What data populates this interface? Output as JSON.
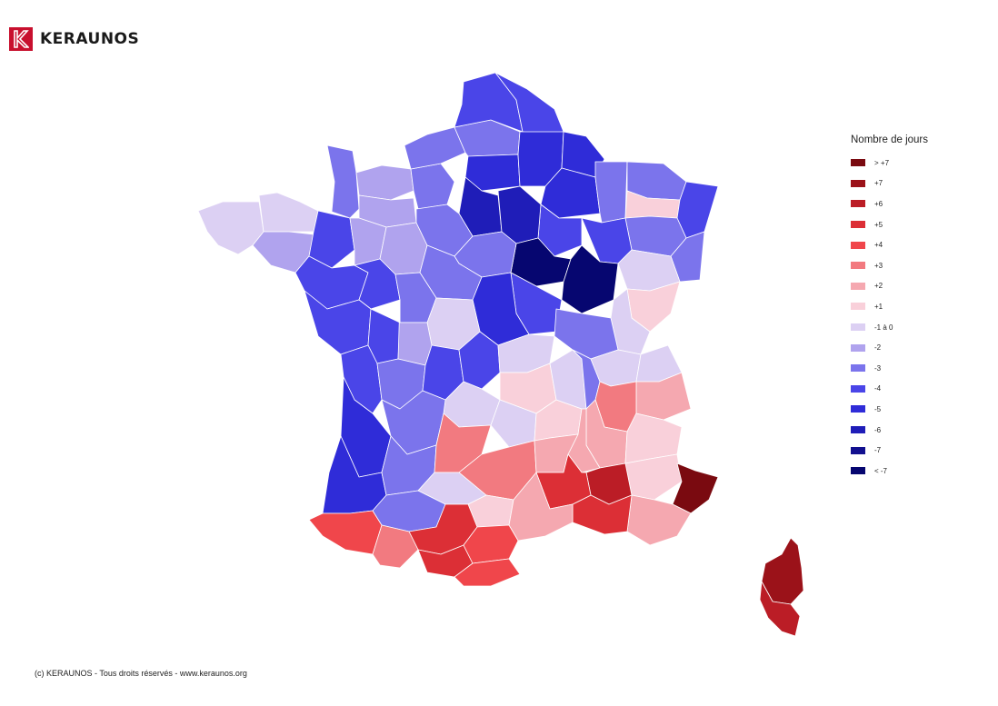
{
  "brand": {
    "name": "KERAUNOS",
    "color": "#c8102e"
  },
  "legend": {
    "title": "Nombre de jours",
    "items": [
      {
        "label": "> +7",
        "color": "#7a0a10"
      },
      {
        "label": "+7",
        "color": "#9b1219"
      },
      {
        "label": "+6",
        "color": "#bb1d26"
      },
      {
        "label": "+5",
        "color": "#dc2f36"
      },
      {
        "label": "+4",
        "color": "#f0464b"
      },
      {
        "label": "+3",
        "color": "#f27a80"
      },
      {
        "label": "+2",
        "color": "#f5a8b0"
      },
      {
        "label": "+1",
        "color": "#f9d0da"
      },
      {
        "label": "-1 à 0",
        "color": "#dcd0f3"
      },
      {
        "label": "-2",
        "color": "#b0a3ee"
      },
      {
        "label": "-3",
        "color": "#7b74ec"
      },
      {
        "label": "-4",
        "color": "#4a45e8"
      },
      {
        "label": "-5",
        "color": "#2f2cd8"
      },
      {
        "label": "-6",
        "color": "#1f1db8"
      },
      {
        "label": "-7",
        "color": "#12108f"
      },
      {
        "label": "< -7",
        "color": "#060670"
      }
    ]
  },
  "map": {
    "regions": [
      {
        "name": "finistere",
        "level": 8
      },
      {
        "name": "cotes-armor",
        "level": 8
      },
      {
        "name": "morbihan",
        "level": 9
      },
      {
        "name": "ille-vilaine",
        "level": 11
      },
      {
        "name": "manche",
        "level": 10
      },
      {
        "name": "calvados",
        "level": 9
      },
      {
        "name": "orne",
        "level": 9
      },
      {
        "name": "eure",
        "level": 10
      },
      {
        "name": "seine-maritime",
        "level": 10
      },
      {
        "name": "somme",
        "level": 10
      },
      {
        "name": "nord",
        "level": 11
      },
      {
        "name": "pas-de-calais",
        "level": 11
      },
      {
        "name": "aisne",
        "level": 12
      },
      {
        "name": "oise",
        "level": 12
      },
      {
        "name": "ardennes",
        "level": 12
      },
      {
        "name": "marne",
        "level": 12
      },
      {
        "name": "ile-de-france",
        "level": 13
      },
      {
        "name": "seine-et-marne",
        "level": 13
      },
      {
        "name": "meuse",
        "level": 10
      },
      {
        "name": "moselle",
        "level": 10
      },
      {
        "name": "bas-rhin",
        "level": 11
      },
      {
        "name": "haut-rhin",
        "level": 10
      },
      {
        "name": "meurthe-moselle",
        "level": 7
      },
      {
        "name": "vosges",
        "level": 10
      },
      {
        "name": "haute-marne",
        "level": 11
      },
      {
        "name": "aube",
        "level": 11
      },
      {
        "name": "yonne",
        "level": 15
      },
      {
        "name": "cote-dor",
        "level": 15
      },
      {
        "name": "haute-saone",
        "level": 8
      },
      {
        "name": "doubs",
        "level": 7
      },
      {
        "name": "jura",
        "level": 8
      },
      {
        "name": "loire-atlantique",
        "level": 11
      },
      {
        "name": "mayenne",
        "level": 9
      },
      {
        "name": "sarthe",
        "level": 9
      },
      {
        "name": "eure-et-loir",
        "level": 10
      },
      {
        "name": "loiret",
        "level": 10
      },
      {
        "name": "loir-et-cher",
        "level": 10
      },
      {
        "name": "maine-et-loire",
        "level": 11
      },
      {
        "name": "indre-et-loire",
        "level": 10
      },
      {
        "name": "vendee",
        "level": 11
      },
      {
        "name": "deux-sevres",
        "level": 11
      },
      {
        "name": "vienne",
        "level": 9
      },
      {
        "name": "indre",
        "level": 8
      },
      {
        "name": "cher",
        "level": 12
      },
      {
        "name": "nievre",
        "level": 11
      },
      {
        "name": "saone-et-loire",
        "level": 10
      },
      {
        "name": "ain",
        "level": 8
      },
      {
        "name": "allier",
        "level": 8
      },
      {
        "name": "charente-maritime",
        "level": 11
      },
      {
        "name": "charente",
        "level": 10
      },
      {
        "name": "haute-vienne",
        "level": 11
      },
      {
        "name": "creuse",
        "level": 11
      },
      {
        "name": "puy-de-dome",
        "level": 7
      },
      {
        "name": "loire",
        "level": 8
      },
      {
        "name": "rhone",
        "level": 10
      },
      {
        "name": "isere",
        "level": 5
      },
      {
        "name": "savoie",
        "level": 6
      },
      {
        "name": "haute-savoie",
        "level": 8
      },
      {
        "name": "gironde",
        "level": 12
      },
      {
        "name": "dordogne",
        "level": 10
      },
      {
        "name": "correze",
        "level": 8
      },
      {
        "name": "cantal",
        "level": 8
      },
      {
        "name": "haute-loire",
        "level": 7
      },
      {
        "name": "ardeche",
        "level": 6
      },
      {
        "name": "drome",
        "level": 6
      },
      {
        "name": "hautes-alpes",
        "level": 7
      },
      {
        "name": "alpes-haute-provence",
        "level": 7
      },
      {
        "name": "landes",
        "level": 12
      },
      {
        "name": "lot-et-garonne",
        "level": 10
      },
      {
        "name": "lot",
        "level": 5
      },
      {
        "name": "tarn-et-garonne",
        "level": 8
      },
      {
        "name": "aveyron",
        "level": 5
      },
      {
        "name": "lozere",
        "level": 6
      },
      {
        "name": "gard",
        "level": 3
      },
      {
        "name": "vaucluse",
        "level": 2
      },
      {
        "name": "bouches-du-rhone",
        "level": 3
      },
      {
        "name": "var",
        "level": 6
      },
      {
        "name": "alpes-maritimes",
        "level": 0
      },
      {
        "name": "pyrenees-atlantiques",
        "level": 4
      },
      {
        "name": "gers",
        "level": 10
      },
      {
        "name": "hautes-pyrenees",
        "level": 5
      },
      {
        "name": "haute-garonne",
        "level": 3
      },
      {
        "name": "tarn",
        "level": 7
      },
      {
        "name": "herault",
        "level": 6
      },
      {
        "name": "aude",
        "level": 4
      },
      {
        "name": "ariege",
        "level": 3
      },
      {
        "name": "pyrenees-orientales",
        "level": 4
      },
      {
        "name": "haute-corse",
        "level": 1
      },
      {
        "name": "corse-du-sud",
        "level": 2
      }
    ]
  },
  "footer": {
    "copyright": "(c) KERAUNOS - Tous droits réservés - www.keraunos.org"
  }
}
